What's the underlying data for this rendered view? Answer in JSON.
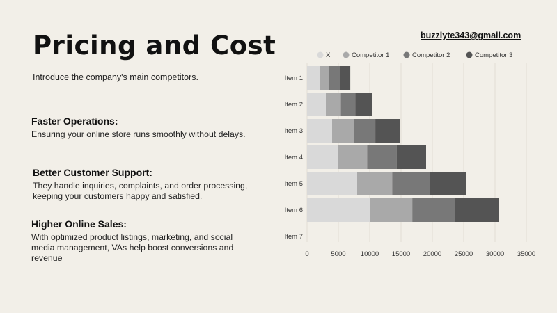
{
  "page": {
    "title": "Pricing and Cost",
    "email": "buzzlyte343@gmail.com",
    "intro": "Introduce the company's main competitors."
  },
  "sections": [
    {
      "heading": "Faster Operations:",
      "body": "Ensuring your online store runs smoothly without delays."
    },
    {
      "heading": "Better Customer Support:",
      "body": "They handle inquiries, complaints, and order processing, keeping your customers happy and satisfied."
    },
    {
      "heading": "Higher Online Sales:",
      "body": "With optimized product listings, marketing, and social media management, VAs help boost conversions and revenue"
    }
  ],
  "chart_data": {
    "type": "bar",
    "orientation": "horizontal",
    "stacked": true,
    "categories": [
      "Item 1",
      "Item 2",
      "Item 3",
      "Item 4",
      "Item 5",
      "Item 6",
      "Item 7"
    ],
    "series": [
      {
        "name": "X",
        "color": "#d9d9d9",
        "values": [
          2000,
          3000,
          4000,
          5000,
          8000,
          10000,
          0
        ]
      },
      {
        "name": "Competitor 1",
        "color": "#a9a9a9",
        "values": [
          1500,
          2400,
          3500,
          4600,
          5600,
          6800,
          0
        ]
      },
      {
        "name": "Competitor 2",
        "color": "#787878",
        "values": [
          1800,
          2300,
          3400,
          4700,
          6000,
          6800,
          0
        ]
      },
      {
        "name": "Competitor 3",
        "color": "#545454",
        "values": [
          1600,
          2700,
          3900,
          4700,
          5800,
          7000,
          0
        ]
      }
    ],
    "xticks": [
      0,
      5000,
      10000,
      15000,
      20000,
      25000,
      30000,
      35000
    ],
    "xlim": [
      0,
      35000
    ],
    "grid": true,
    "legend": "top"
  }
}
